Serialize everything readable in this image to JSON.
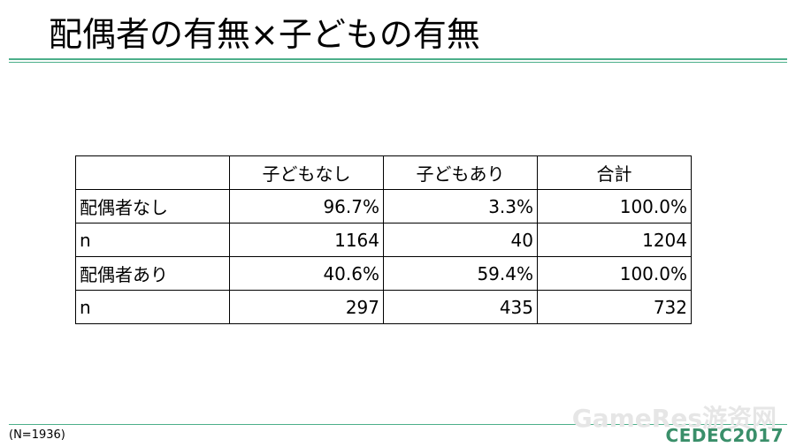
{
  "header": {
    "title": "配偶者の有無×子どもの有無"
  },
  "table": {
    "columns": [
      "",
      "子どもなし",
      "子どもあり",
      "合計"
    ],
    "rows": [
      [
        "配偶者なし",
        "96.7%",
        "3.3%",
        "100.0%"
      ],
      [
        "n",
        "1164",
        "40",
        "1204"
      ],
      [
        "配偶者あり",
        "40.6%",
        "59.4%",
        "100.0%"
      ],
      [
        "n",
        "297",
        "435",
        "732"
      ]
    ]
  },
  "footer": {
    "note": "(N=1936)",
    "watermark": "GameRes游资网",
    "logo": "CEDEC2017"
  }
}
